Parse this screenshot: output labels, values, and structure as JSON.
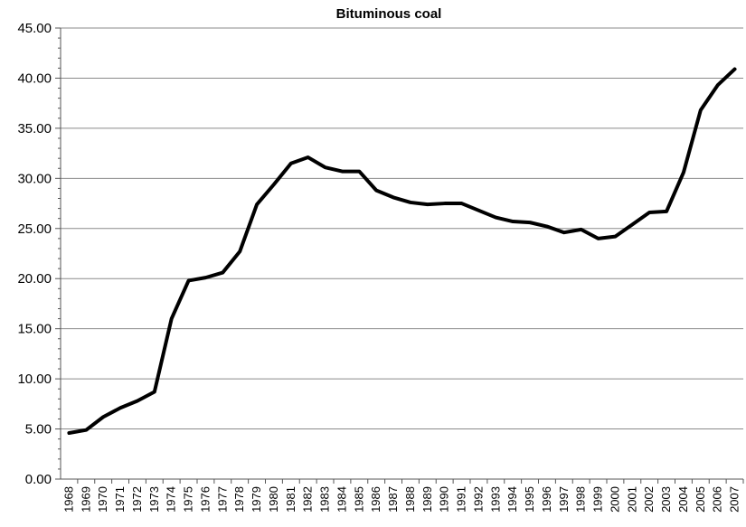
{
  "chart_data": {
    "type": "line",
    "title": "Bituminous coal",
    "xlabel": "",
    "ylabel": "",
    "ylim": [
      0,
      45
    ],
    "ytick_step": 5,
    "y_minor_step": 1,
    "ytick_labels": [
      "0.00",
      "5.00",
      "10.00",
      "15.00",
      "20.00",
      "25.00",
      "30.00",
      "35.00",
      "40.00",
      "45.00"
    ],
    "grid": true,
    "legend": "none",
    "categories": [
      "1968",
      "1969",
      "1970",
      "1971",
      "1972",
      "1973",
      "1974",
      "1975",
      "1976",
      "1977",
      "1978",
      "1979",
      "1980",
      "1981",
      "1982",
      "1983",
      "1984",
      "1985",
      "1986",
      "1987",
      "1988",
      "1989",
      "1990",
      "1991",
      "1992",
      "1993",
      "1994",
      "1995",
      "1996",
      "1997",
      "1998",
      "1999",
      "2000",
      "2001",
      "2002",
      "2003",
      "2004",
      "2005",
      "2006",
      "2007"
    ],
    "series": [
      {
        "color": "#000000",
        "values": [
          4.6,
          4.9,
          6.2,
          7.1,
          7.8,
          8.7,
          16.0,
          19.8,
          20.1,
          20.6,
          22.7,
          27.4,
          29.4,
          31.5,
          32.1,
          31.1,
          30.7,
          30.7,
          28.8,
          28.1,
          27.6,
          27.4,
          27.5,
          27.5,
          26.8,
          26.1,
          25.7,
          25.6,
          25.2,
          24.6,
          24.9,
          24.0,
          24.2,
          25.4,
          26.6,
          26.7,
          30.6,
          36.8,
          39.3,
          40.9
        ]
      }
    ]
  }
}
